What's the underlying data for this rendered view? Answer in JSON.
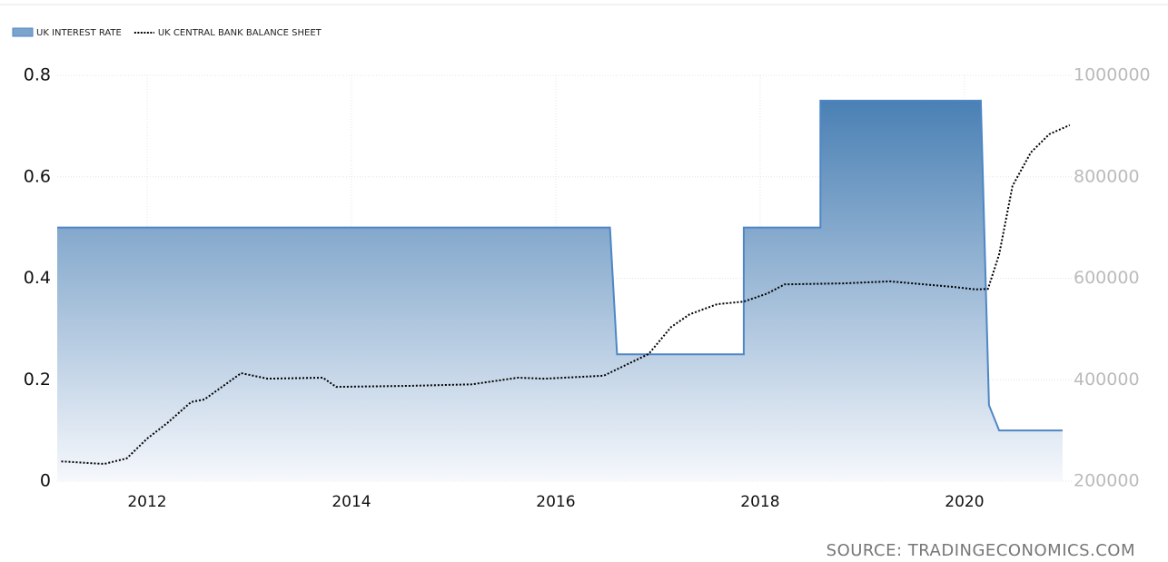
{
  "chart_data": {
    "type": "line",
    "source": "SOURCE: TRADINGECONOMICS.COM",
    "xlim": [
      2011.12,
      2021.05
    ],
    "xticks": [
      2012,
      2014,
      2016,
      2018,
      2020
    ],
    "ylim": [
      0,
      0.8
    ],
    "yticks": [
      0,
      0.2,
      0.4,
      0.6,
      0.8
    ],
    "y2lim": [
      200000,
      1000000
    ],
    "y2ticks": [
      200000,
      400000,
      600000,
      800000,
      1000000
    ],
    "grid": true,
    "legend": "top-left",
    "series": [
      {
        "name": "UK INTEREST RATE",
        "color": "#4f86c6",
        "style": "area",
        "x": [
          2011.12,
          2016.53,
          2016.6,
          2017.84,
          2017.84,
          2018.59,
          2018.59,
          2020.16,
          2020.24,
          2020.34,
          2020.96
        ],
        "values": [
          0.5,
          0.5,
          0.25,
          0.25,
          0.5,
          0.5,
          0.75,
          0.75,
          0.15,
          0.1,
          0.1
        ]
      },
      {
        "name": "UK CENTRAL BANK BALANCE SHEET",
        "color": "#000000",
        "style": "dotted",
        "axis": "y2",
        "x": [
          2011.16,
          2011.58,
          2011.8,
          2012.0,
          2012.2,
          2012.43,
          2012.56,
          2012.92,
          2013.18,
          2013.72,
          2013.85,
          2014.56,
          2015.18,
          2015.63,
          2015.89,
          2016.47,
          2016.91,
          2017.13,
          2017.31,
          2017.58,
          2017.84,
          2018.07,
          2018.24,
          2018.82,
          2019.27,
          2019.89,
          2020.11,
          2020.23,
          2020.34,
          2020.47,
          2020.65,
          2020.83,
          2021.03
        ],
        "values": [
          239000,
          234000,
          245000,
          284000,
          315000,
          356000,
          361000,
          413000,
          402000,
          404000,
          386000,
          388000,
          391000,
          404000,
          402000,
          408000,
          451000,
          504000,
          529000,
          549000,
          554000,
          570000,
          588000,
          590000,
          594000,
          583000,
          578000,
          579000,
          647000,
          782000,
          848000,
          884000,
          902000
        ]
      }
    ]
  }
}
